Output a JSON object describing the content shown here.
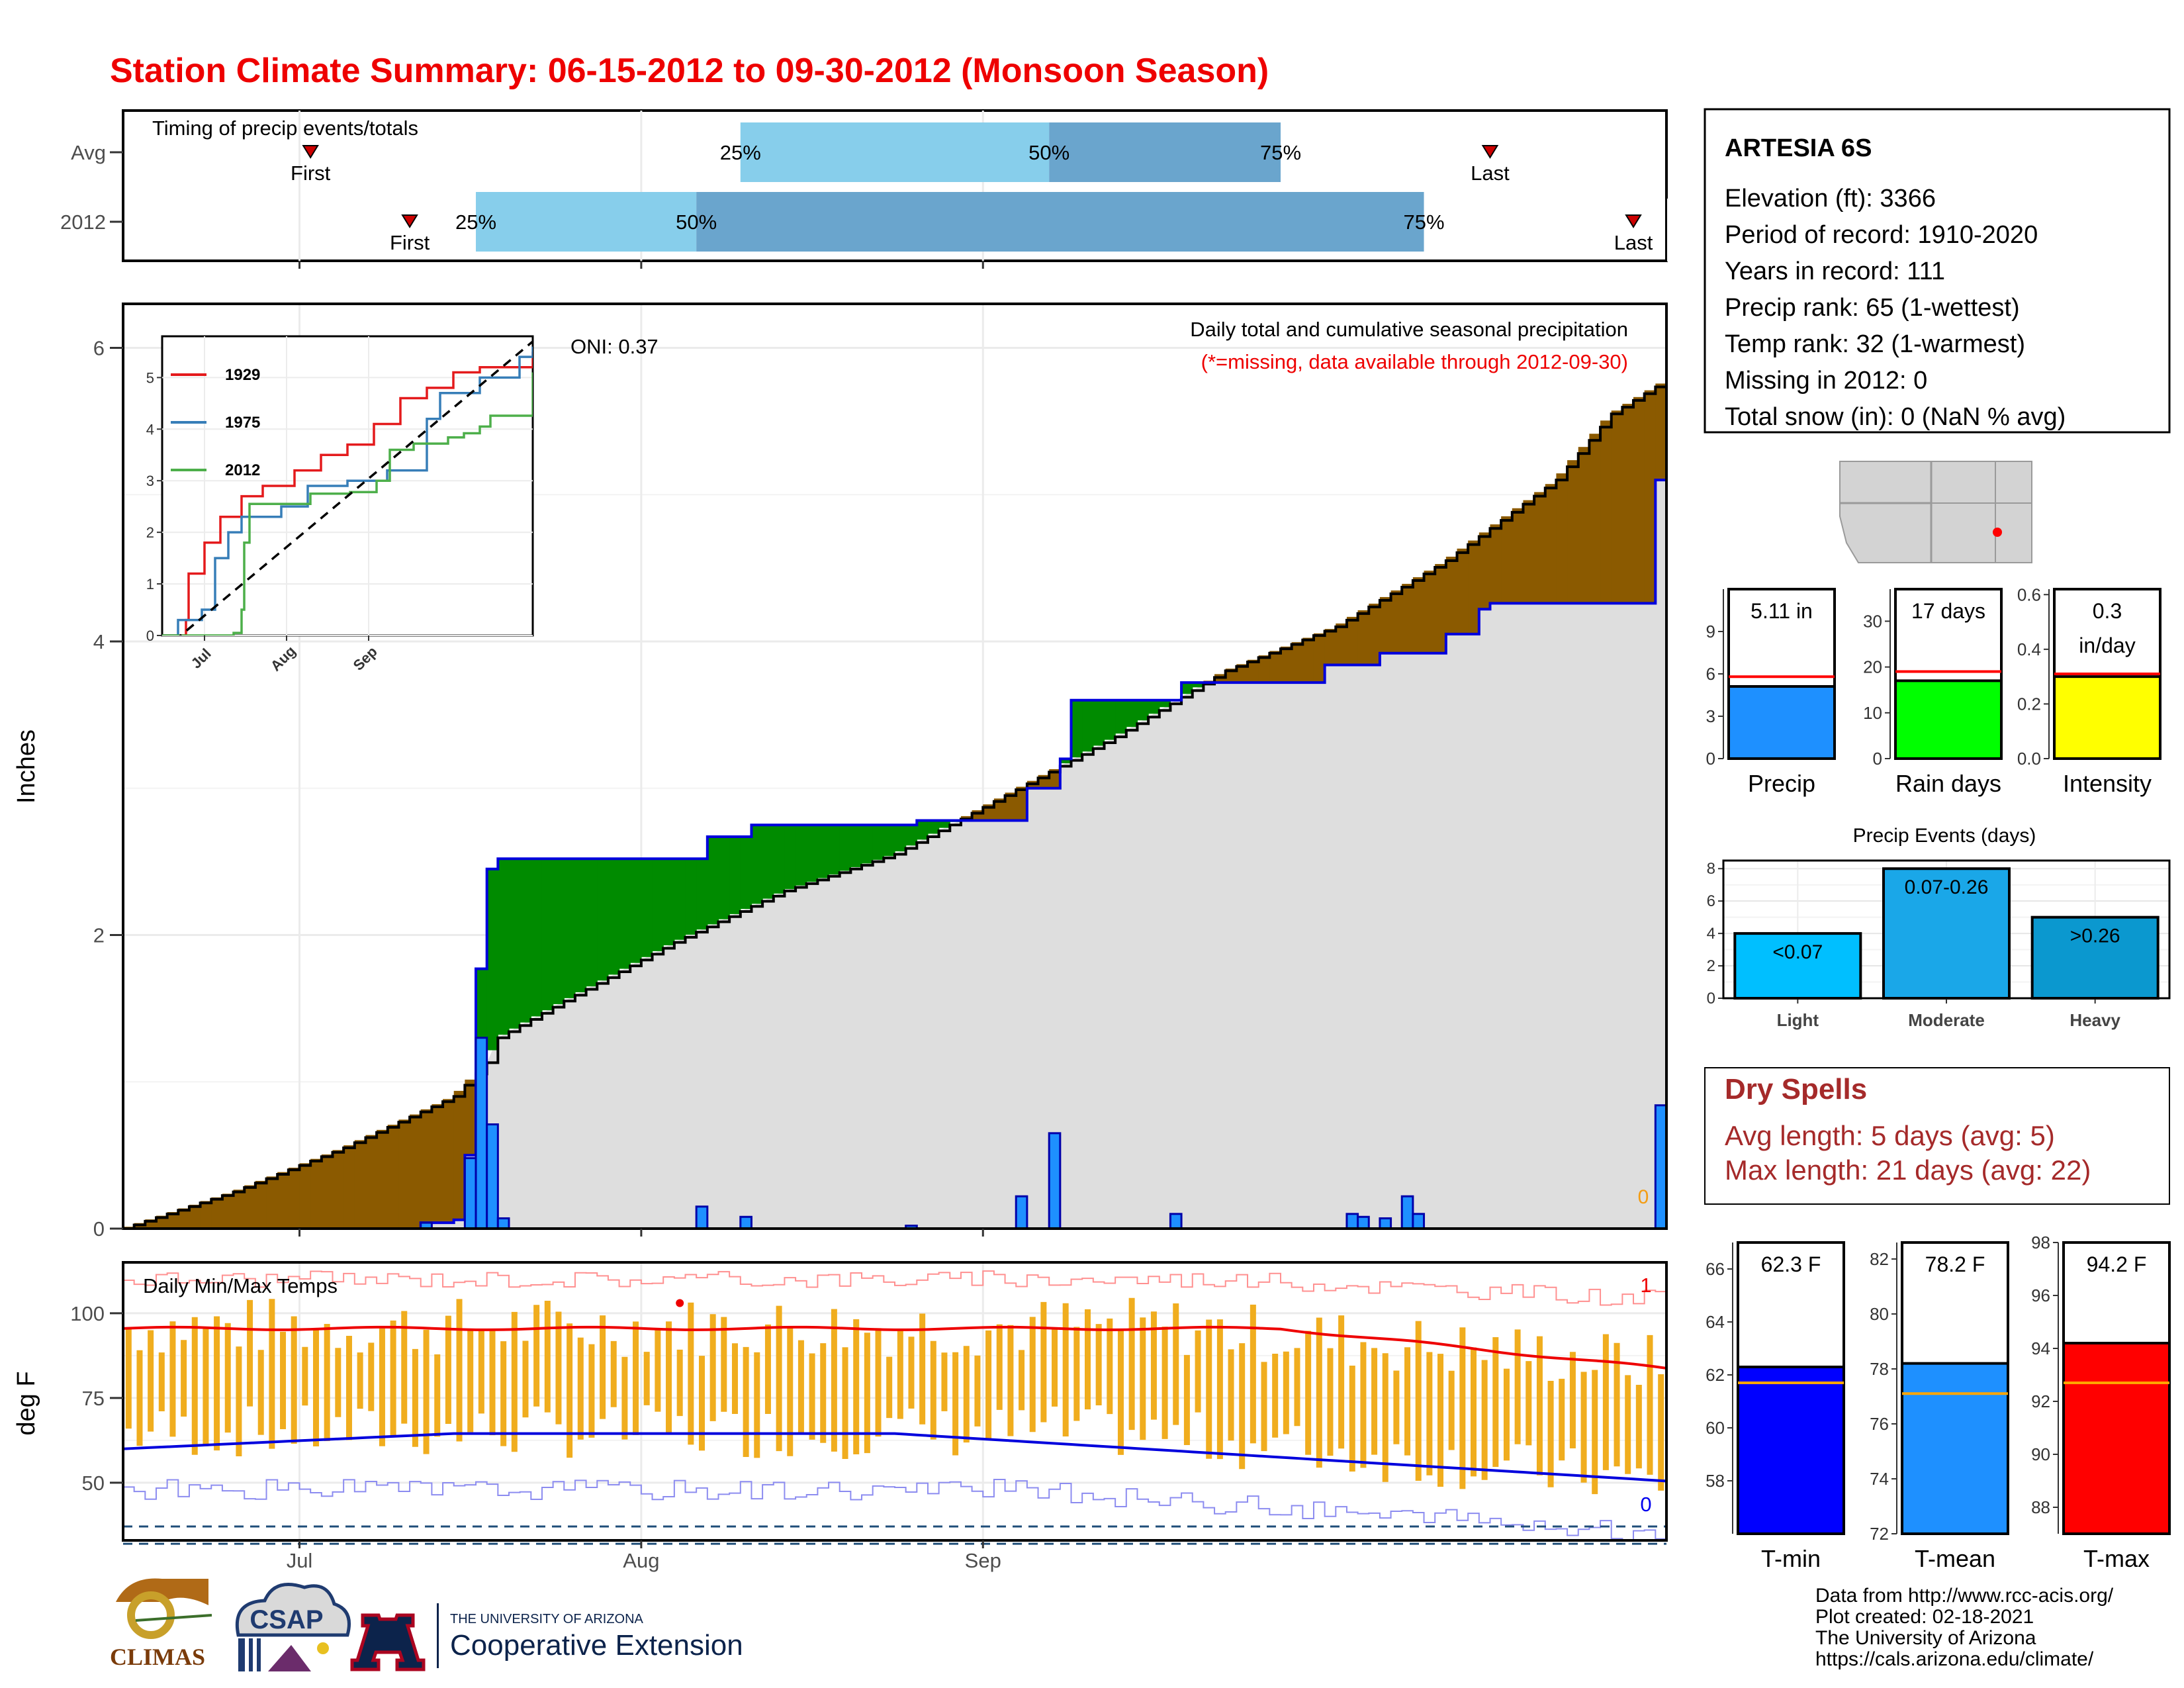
{
  "title": "Station Climate Summary: 06-15-2012 to 09-30-2012 (Monsoon Season)",
  "timing": {
    "label": "Timing of precip events/totals",
    "rows": [
      {
        "name": "Avg",
        "first_day": 17,
        "p25_day": 56,
        "p50_day": 84,
        "p75_day": 105,
        "last_day": 124
      },
      {
        "name": "2012",
        "first_day": 26,
        "p25_day": 32,
        "p50_day": 52,
        "p75_day": 118,
        "last_day": 137
      }
    ],
    "labels": {
      "first": "First",
      "last": "Last",
      "p25": "25%",
      "p50": "50%",
      "p75": "75%"
    }
  },
  "station": {
    "name": "ARTESIA 6S",
    "lines": [
      "Elevation (ft): 3366",
      "Period of record: 1910-2020",
      "Years in record: 111",
      "Precip rank: 65 (1-wettest)",
      "Temp rank: 32 (1-warmest)",
      "Missing in 2012: 0",
      "Total snow (in): 0 (NaN % avg)"
    ]
  },
  "chart_data": [
    {
      "id": "cumulative_precip",
      "type": "area",
      "title": "Daily total and cumulative seasonal precipitation",
      "subtitle": "(*=missing, data available through 2012-09-30)",
      "annotation": "ONI: 0.37",
      "ylabel": "Inches",
      "ylim": [
        0,
        6.3
      ],
      "yticks": [
        0,
        2,
        4,
        6
      ],
      "xticks": [
        "Jul",
        "Aug",
        "Sep"
      ],
      "cum_2012": [
        [
          0,
          0
        ],
        [
          27,
          0.04
        ],
        [
          30,
          0.06
        ],
        [
          31,
          0.5
        ],
        [
          32,
          1.77
        ],
        [
          33,
          2.45
        ],
        [
          34,
          2.52
        ],
        [
          52,
          2.52
        ],
        [
          53,
          2.67
        ],
        [
          56,
          2.67
        ],
        [
          57,
          2.75
        ],
        [
          71,
          2.75
        ],
        [
          72,
          2.78
        ],
        [
          81,
          2.78
        ],
        [
          82,
          3.0
        ],
        [
          85,
          3.2
        ],
        [
          86,
          3.6
        ],
        [
          95,
          3.6
        ],
        [
          96,
          3.72
        ],
        [
          108,
          3.72
        ],
        [
          109,
          3.84
        ],
        [
          113,
          3.84
        ],
        [
          114,
          3.92
        ],
        [
          119,
          3.92
        ],
        [
          120,
          4.05
        ],
        [
          122,
          4.05
        ],
        [
          123,
          4.22
        ],
        [
          124,
          4.26
        ],
        [
          138,
          4.26
        ],
        [
          139,
          5.1
        ],
        [
          140,
          5.1
        ]
      ],
      "avg_cum": [
        [
          0,
          0
        ],
        [
          10,
          0.25
        ],
        [
          20,
          0.55
        ],
        [
          30,
          0.9
        ],
        [
          33,
          1.13
        ],
        [
          34,
          1.3
        ],
        [
          40,
          1.55
        ],
        [
          50,
          1.95
        ],
        [
          60,
          2.3
        ],
        [
          70,
          2.55
        ],
        [
          80,
          2.95
        ],
        [
          90,
          3.35
        ],
        [
          100,
          3.8
        ],
        [
          110,
          4.1
        ],
        [
          120,
          4.55
        ],
        [
          130,
          5.1
        ],
        [
          135,
          5.55
        ],
        [
          140,
          5.78
        ]
      ],
      "daily": [
        [
          27,
          0.04
        ],
        [
          31,
          0.48
        ],
        [
          32,
          1.3
        ],
        [
          33,
          0.71
        ],
        [
          34,
          0.07
        ],
        [
          52,
          0.15
        ],
        [
          56,
          0.08
        ],
        [
          71,
          0.02
        ],
        [
          81,
          0.22
        ],
        [
          84,
          0.65
        ],
        [
          95,
          0.1
        ],
        [
          111,
          0.1
        ],
        [
          112,
          0.08
        ],
        [
          114,
          0.07
        ],
        [
          116,
          0.22
        ],
        [
          117,
          0.1
        ],
        [
          139,
          0.84
        ]
      ],
      "daily_marker": "0",
      "inset": {
        "type": "line",
        "yticks": [
          0,
          1,
          2,
          3,
          4,
          5
        ],
        "xticks": [
          "Jul",
          "Aug",
          "Sep"
        ],
        "series": [
          {
            "name": "1929",
            "color": "#e41a1c",
            "points": [
              [
                0,
                0
              ],
              [
                8,
                0
              ],
              [
                9,
                0.3
              ],
              [
                10,
                1.2
              ],
              [
                15,
                1.2
              ],
              [
                16,
                1.8
              ],
              [
                22,
                2.3
              ],
              [
                30,
                2.7
              ],
              [
                38,
                2.9
              ],
              [
                50,
                3.2
              ],
              [
                60,
                3.5
              ],
              [
                70,
                3.7
              ],
              [
                80,
                4.1
              ],
              [
                90,
                4.6
              ],
              [
                100,
                4.8
              ],
              [
                110,
                5.1
              ],
              [
                120,
                5.2
              ],
              [
                135,
                5.2
              ],
              [
                140,
                5.5
              ]
            ]
          },
          {
            "name": "1975",
            "color": "#377eb8",
            "points": [
              [
                0,
                0
              ],
              [
                5,
                0
              ],
              [
                6,
                0.3
              ],
              [
                10,
                0.3
              ],
              [
                15,
                0.5
              ],
              [
                20,
                1.5
              ],
              [
                25,
                2.0
              ],
              [
                30,
                2.3
              ],
              [
                45,
                2.5
              ],
              [
                55,
                2.9
              ],
              [
                70,
                3.0
              ],
              [
                85,
                3.2
              ],
              [
                100,
                4.2
              ],
              [
                105,
                4.7
              ],
              [
                120,
                5.0
              ],
              [
                135,
                5.4
              ],
              [
                140,
                5.6
              ]
            ]
          },
          {
            "name": "2012",
            "color": "#4daf4a",
            "points": [
              [
                0,
                0
              ],
              [
                26,
                0
              ],
              [
                27,
                0.05
              ],
              [
                30,
                0.5
              ],
              [
                31,
                1.8
              ],
              [
                33,
                2.55
              ],
              [
                52,
                2.55
              ],
              [
                56,
                2.75
              ],
              [
                71,
                2.78
              ],
              [
                81,
                3.0
              ],
              [
                86,
                3.6
              ],
              [
                95,
                3.72
              ],
              [
                108,
                3.84
              ],
              [
                114,
                3.92
              ],
              [
                120,
                4.05
              ],
              [
                124,
                4.26
              ],
              [
                138,
                4.26
              ],
              [
                140,
                5.1
              ]
            ]
          }
        ],
        "avg_line": [
          [
            0,
            -0.3
          ],
          [
            140,
            5.7
          ]
        ]
      }
    },
    {
      "id": "precip_bars",
      "type": "bar",
      "categories": [
        "Precip",
        "Rain days",
        "Intensity"
      ],
      "values": [
        5.11,
        17,
        0.3
      ],
      "averages": [
        5.8,
        19,
        0.31
      ],
      "labels": [
        "5.11 in",
        "17 days",
        "0.3\nin/day"
      ],
      "ylims": [
        [
          0,
          12
        ],
        [
          0,
          37
        ],
        [
          0,
          0.62
        ]
      ],
      "yticks": [
        [
          0,
          3,
          6,
          9
        ],
        [
          0,
          10,
          20,
          30
        ],
        [
          0.0,
          0.2,
          0.4,
          0.6
        ]
      ],
      "colors": [
        "#1e90ff",
        "#00ff00",
        "#ffff00"
      ]
    },
    {
      "id": "precip_events",
      "type": "bar",
      "title": "Precip Events (days)",
      "categories": [
        "Light",
        "Moderate",
        "Heavy"
      ],
      "values": [
        4,
        8,
        5
      ],
      "bar_labels": [
        "<0.07",
        "0.07-0.26",
        ">0.26"
      ],
      "ylim": [
        0,
        8.5
      ],
      "yticks": [
        0,
        2,
        4,
        6,
        8
      ],
      "colors": [
        "#00bfff",
        "#1aa7e8",
        "#0b98cf"
      ]
    },
    {
      "id": "temp_bars",
      "type": "bar",
      "categories": [
        "T-min",
        "T-mean",
        "T-max"
      ],
      "values": [
        62.3,
        78.2,
        94.2
      ],
      "averages": [
        61.7,
        77.1,
        92.7
      ],
      "labels": [
        "62.3 F",
        "78.2 F",
        "94.2 F"
      ],
      "ylims": [
        [
          56,
          67
        ],
        [
          72,
          82.6
        ],
        [
          87,
          98
        ]
      ],
      "yticks": [
        [
          58,
          60,
          62,
          64,
          66
        ],
        [
          72,
          74,
          76,
          78,
          80,
          82
        ],
        [
          88,
          90,
          92,
          94,
          96,
          98
        ]
      ],
      "colors": [
        "#0000ff",
        "#1e90ff",
        "#ff0000"
      ]
    },
    {
      "id": "daily_temps",
      "type": "bar",
      "title": "Daily Min/Max Temps",
      "ylabel": "deg F",
      "ylim": [
        33,
        115
      ],
      "yticks": [
        50,
        75,
        100
      ],
      "xticks": [
        "Jul",
        "Aug",
        "Sep"
      ],
      "count_labels": [
        "1",
        "0"
      ]
    }
  ],
  "dry_spells": {
    "title": "Dry Spells",
    "avg_length": "Avg length: 5 days (avg: 5)",
    "max_length": "Max length: 21 days (avg: 22)"
  },
  "credits": {
    "lines": [
      "Data from http://www.rcc-acis.org/",
      "Plot created: 02-18-2021",
      "The University of Arizona",
      "https://cals.arizona.edu/climate/"
    ]
  },
  "logos": {
    "climas": "CLIMAS",
    "csap": "CSAP",
    "uofa_top": "THE UNIVERSITY OF ARIZONA",
    "uofa_bottom": "Cooperative Extension",
    "uofa_letter": "A"
  }
}
